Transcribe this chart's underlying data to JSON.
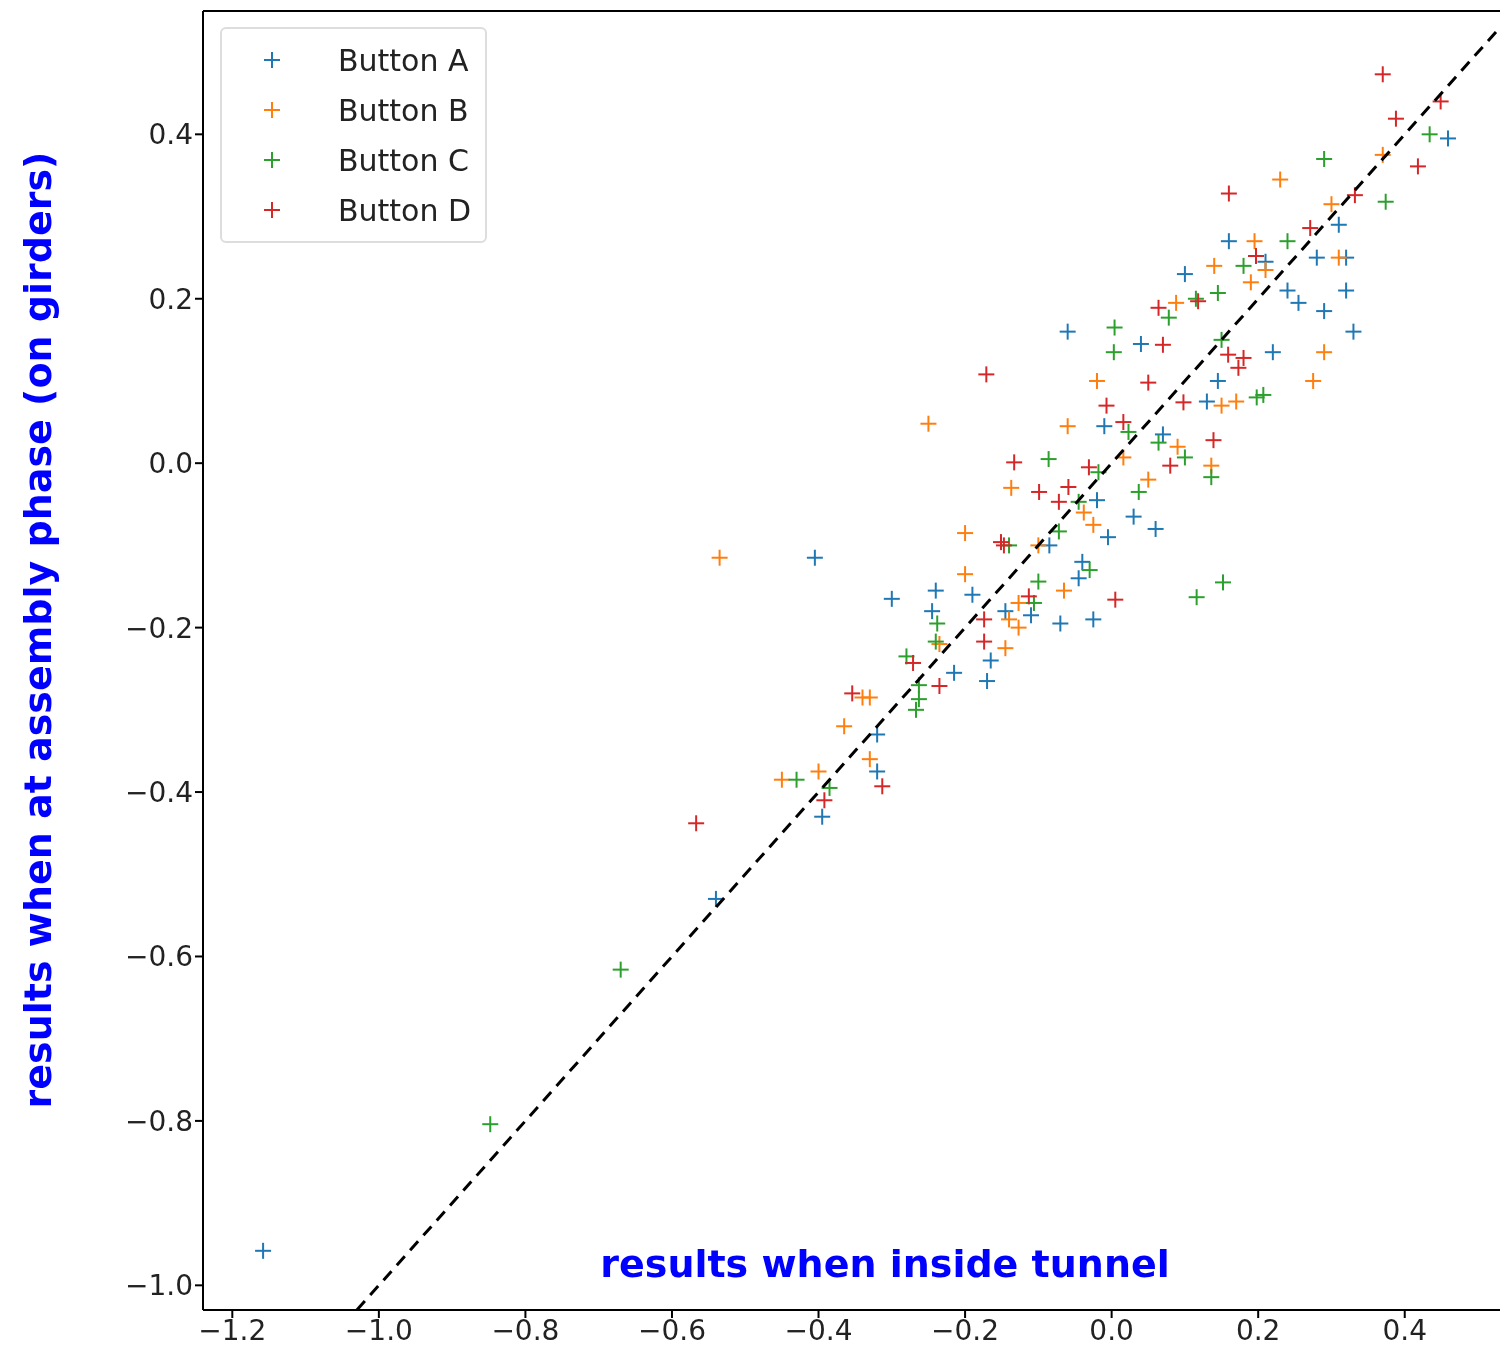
{
  "chart_data": {
    "type": "scatter",
    "xlabel": "results when inside tunnel",
    "ylabel": "results when at assembly phase (on girders)",
    "xlim": [
      -1.24,
      0.53
    ],
    "ylim": [
      -1.03,
      0.55
    ],
    "xticks": [
      {
        "value": -1.2,
        "label": "−1.2"
      },
      {
        "value": -1.0,
        "label": "−1.0"
      },
      {
        "value": -0.8,
        "label": "−0.8"
      },
      {
        "value": -0.6,
        "label": "−0.6"
      },
      {
        "value": -0.4,
        "label": "−0.4"
      },
      {
        "value": -0.2,
        "label": "−0.2"
      },
      {
        "value": 0,
        "label": "0.0"
      },
      {
        "value": 0.2,
        "label": "0.2"
      },
      {
        "value": 0.4,
        "label": "0.4"
      }
    ],
    "yticks": [
      {
        "value": -1.0,
        "label": "−1.0"
      },
      {
        "value": -0.8,
        "label": "−0.8"
      },
      {
        "value": -0.6,
        "label": "−0.6"
      },
      {
        "value": -0.4,
        "label": "−0.4"
      },
      {
        "value": -0.2,
        "label": "−0.2"
      },
      {
        "value": 0,
        "label": "0.0"
      },
      {
        "value": 0.2,
        "label": "0.2"
      },
      {
        "value": 0.4,
        "label": "0.4"
      }
    ],
    "grid": false,
    "legend": "top left",
    "marker": "cross",
    "series": [
      {
        "name": "Button A",
        "color": "#1f77b4",
        "x": [
          0.459,
          0.31,
          0.32,
          0.32,
          0.16,
          0.1,
          0.21,
          0.29,
          0.33,
          -0.06,
          0.04,
          0.22,
          0.255,
          0.145,
          0.13,
          0.07,
          -0.01,
          -0.02,
          0.03,
          0.06,
          -0.005,
          -0.025,
          -0.07,
          -0.11,
          -0.145,
          -0.19,
          -0.24,
          -0.245,
          -0.3,
          -0.165,
          -0.17,
          -0.215,
          -0.32,
          -0.32,
          -0.395,
          -0.54,
          -0.405,
          -1.158,
          -0.04,
          -0.045,
          -0.085,
          0.24,
          0.28
        ],
        "values": [
          0.395,
          0.29,
          0.25,
          0.21,
          0.27,
          0.23,
          0.245,
          0.185,
          0.16,
          0.16,
          0.145,
          0.135,
          0.195,
          0.1,
          0.075,
          0.035,
          0.045,
          -0.045,
          -0.065,
          -0.08,
          -0.09,
          -0.19,
          -0.195,
          -0.185,
          -0.18,
          -0.16,
          -0.155,
          -0.18,
          -0.165,
          -0.24,
          -0.265,
          -0.255,
          -0.33,
          -0.375,
          -0.43,
          -0.53,
          -0.115,
          -0.958,
          -0.12,
          -0.14,
          -0.1,
          0.21,
          0.25
        ]
      },
      {
        "name": "Button B",
        "color": "#ff7f0e",
        "x": [
          0.37,
          0.3,
          0.23,
          0.31,
          0.29,
          0.275,
          0.195,
          0.21,
          0.14,
          0.088,
          0.17,
          0.15,
          0.09,
          -0.02,
          -0.06,
          -0.25,
          -0.137,
          -0.2,
          -0.2,
          -0.127,
          -0.127,
          -0.065,
          -0.1,
          -0.14,
          -0.145,
          -0.235,
          -0.365,
          -0.34,
          -0.33,
          -0.33,
          -0.45,
          -0.4,
          -0.535,
          0.136,
          0.05,
          -0.038,
          0.016,
          -0.025,
          0.19
        ],
        "values": [
          0.375,
          0.315,
          0.345,
          0.25,
          0.135,
          0.1,
          0.27,
          0.235,
          0.24,
          0.195,
          0.075,
          0.07,
          0.02,
          0.1,
          0.045,
          0.048,
          -0.03,
          -0.085,
          -0.135,
          -0.17,
          -0.2,
          -0.155,
          -0.1,
          -0.19,
          -0.225,
          -0.22,
          -0.32,
          -0.285,
          -0.285,
          -0.36,
          -0.385,
          -0.375,
          -0.115,
          -0.003,
          -0.02,
          -0.06,
          0.007,
          -0.075,
          0.22
        ]
      },
      {
        "name": "Button C",
        "color": "#2ca02c",
        "x": [
          0.434,
          0.374,
          0.29,
          0.24,
          0.18,
          0.145,
          0.115,
          0.078,
          0.004,
          0.003,
          0.207,
          0.198,
          0.15,
          0.136,
          0.1,
          0.152,
          0.116,
          -0.086,
          -0.045,
          0.037,
          0.064,
          0.023,
          -0.072,
          -0.1,
          -0.14,
          -0.238,
          -0.24,
          -0.263,
          -0.267,
          -0.263,
          -0.28,
          -0.43,
          -0.385,
          -0.67,
          -0.848,
          -0.03,
          -0.106,
          -0.018
        ],
        "values": [
          0.4,
          0.318,
          0.37,
          0.27,
          0.24,
          0.207,
          0.2,
          0.177,
          0.165,
          0.135,
          0.083,
          0.08,
          0.15,
          -0.017,
          0.007,
          -0.145,
          -0.163,
          0.005,
          -0.047,
          -0.035,
          0.025,
          0.038,
          -0.083,
          -0.144,
          -0.1,
          -0.195,
          -0.217,
          -0.27,
          -0.3,
          -0.287,
          -0.235,
          -0.385,
          -0.395,
          -0.616,
          -0.804,
          -0.13,
          -0.17,
          -0.011
        ]
      },
      {
        "name": "Button D",
        "color": "#d62728",
        "x": [
          0.37,
          0.449,
          0.388,
          0.418,
          0.16,
          0.332,
          0.271,
          0.197,
          0.064,
          0.118,
          0.07,
          0.159,
          0.18,
          0.173,
          0.139,
          -0.171,
          -0.007,
          0.016,
          -0.133,
          -0.099,
          -0.072,
          -0.059,
          -0.031,
          -0.147,
          -0.151,
          -0.113,
          -0.174,
          -0.174,
          -0.271,
          -0.235,
          -0.354,
          -0.392,
          -0.313,
          -0.567,
          0.005,
          0.08,
          0.05,
          0.098
        ],
        "values": [
          0.473,
          0.44,
          0.419,
          0.361,
          0.328,
          0.326,
          0.286,
          0.252,
          0.189,
          0.197,
          0.144,
          0.132,
          0.128,
          0.116,
          0.028,
          0.108,
          0.07,
          0.05,
          0.001,
          -0.035,
          -0.047,
          -0.029,
          -0.005,
          -0.1,
          -0.096,
          -0.162,
          -0.19,
          -0.217,
          -0.243,
          -0.271,
          -0.28,
          -0.41,
          -0.393,
          -0.438,
          -0.166,
          -0.003,
          0.098,
          0.074
        ]
      },
      {
        "type": "line",
        "color": "#000000",
        "line_style": "dashed",
        "marker": "none",
        "x": [
          -1.03,
          0.53
        ],
        "values": [
          -1.03,
          0.53
        ]
      }
    ]
  }
}
